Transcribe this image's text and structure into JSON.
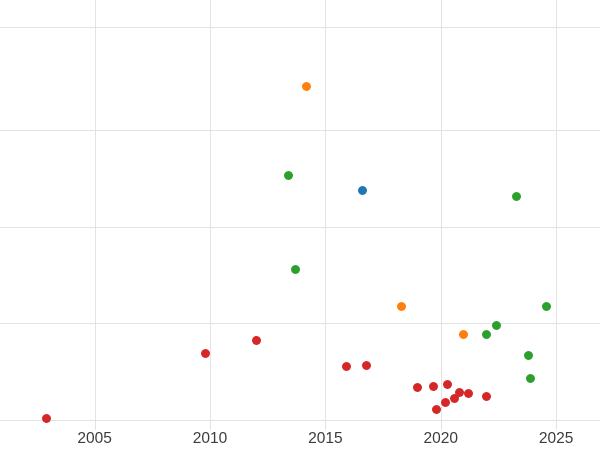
{
  "chart_data": {
    "type": "scatter",
    "title": "",
    "xlabel": "",
    "ylabel": "",
    "x_ticks": [
      2005,
      2010,
      2015,
      2020,
      2025
    ],
    "xlim": [
      2000.9,
      2026.9
    ],
    "ylim": [
      0,
      1
    ],
    "grid": true,
    "legend": "none",
    "background": "#ffffff",
    "gridline_color": "#e3e3e3",
    "tick_label_color": "#3c3c3c",
    "h_gridlines_frac_from_top": [
      0.063,
      0.302,
      0.528,
      0.751,
      0.977
    ],
    "note": "y-axis has no visible tick labels; y values are normalized 0-1 estimates from plot bottom",
    "series": [
      {
        "name": "red",
        "color": "#d62728",
        "points": [
          [
            2002.9,
            0.026
          ],
          [
            2009.8,
            0.177
          ],
          [
            2012.0,
            0.207
          ],
          [
            2015.9,
            0.147
          ],
          [
            2016.8,
            0.149
          ],
          [
            2019.0,
            0.098
          ],
          [
            2019.7,
            0.102
          ],
          [
            2020.3,
            0.105
          ],
          [
            2019.8,
            0.047
          ],
          [
            2020.2,
            0.065
          ],
          [
            2020.6,
            0.074
          ],
          [
            2020.8,
            0.088
          ],
          [
            2021.2,
            0.084
          ],
          [
            2022.0,
            0.077
          ]
        ]
      },
      {
        "name": "green",
        "color": "#2ca02c",
        "points": [
          [
            2013.4,
            0.591
          ],
          [
            2013.7,
            0.374
          ],
          [
            2023.3,
            0.544
          ],
          [
            2024.6,
            0.288
          ],
          [
            2022.4,
            0.244
          ],
          [
            2022.0,
            0.223
          ],
          [
            2023.8,
            0.174
          ],
          [
            2023.9,
            0.119
          ]
        ]
      },
      {
        "name": "orange",
        "color": "#ff7f0e",
        "points": [
          [
            2014.2,
            0.8
          ],
          [
            2018.3,
            0.288
          ],
          [
            2021.0,
            0.223
          ]
        ]
      },
      {
        "name": "blue",
        "color": "#1f77b4",
        "points": [
          [
            2016.6,
            0.558
          ]
        ]
      }
    ]
  }
}
